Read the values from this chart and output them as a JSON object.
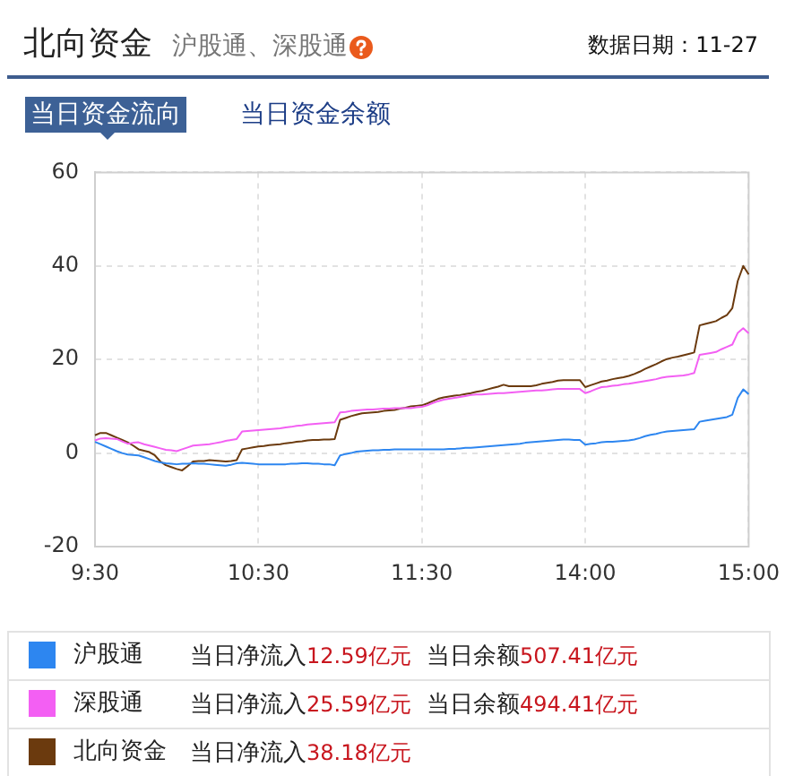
{
  "chart_data": {
    "type": "line",
    "title": "北向资金",
    "subtitle": "沪股通、深股通",
    "annotations": [
      "数据日期：11-27",
      "当日资金流向",
      "当日资金余额",
      "当日净流入12.59亿元",
      "当日余额507.41亿元",
      "当日净流入25.59亿元",
      "当日余额494.41亿元",
      "当日净流入38.18亿元"
    ],
    "categories": [
      "9:30",
      null,
      null,
      null,
      null,
      null,
      null,
      null,
      null,
      null,
      null,
      null,
      null,
      null,
      null,
      null,
      null,
      null,
      null,
      null,
      null,
      null,
      null,
      null,
      null,
      null,
      null,
      null,
      null,
      null,
      "10:30",
      null,
      null,
      null,
      null,
      null,
      null,
      null,
      null,
      null,
      null,
      null,
      null,
      null,
      null,
      null,
      null,
      null,
      null,
      null,
      null,
      null,
      null,
      null,
      null,
      null,
      null,
      null,
      null,
      null,
      "11:30",
      null,
      null,
      null,
      null,
      null,
      null,
      null,
      null,
      null,
      null,
      null,
      null,
      null,
      null,
      null,
      null,
      null,
      null,
      null,
      null,
      null,
      null,
      null,
      null,
      null,
      null,
      null,
      null,
      null,
      "14:00",
      null,
      null,
      null,
      null,
      null,
      null,
      null,
      null,
      null,
      null,
      null,
      null,
      null,
      null,
      null,
      null,
      null,
      null,
      null,
      null,
      null,
      null,
      null,
      null,
      null,
      null,
      null,
      null,
      null,
      "15:00"
    ],
    "ylim": [
      -20,
      60
    ],
    "yticks": [
      -20,
      0,
      20,
      40,
      60
    ],
    "grid": true,
    "legend": "bottom",
    "series": [
      {
        "name": "沪股通",
        "color": "#2d86f0",
        "values": [
          2.4,
          1.9,
          1.4,
          0.9,
          0.4,
          0.0,
          -0.3,
          -0.4,
          -0.5,
          -0.9,
          -1.3,
          -1.7,
          -2.0,
          -2.2,
          -2.3,
          -2.4,
          -2.3,
          -2.3,
          -2.2,
          -2.3,
          -2.3,
          -2.4,
          -2.5,
          -2.6,
          -2.7,
          -2.5,
          -2.2,
          -2.1,
          -2.2,
          -2.3,
          -2.4,
          -2.4,
          -2.4,
          -2.4,
          -2.4,
          -2.4,
          -2.3,
          -2.3,
          -2.2,
          -2.2,
          -2.3,
          -2.3,
          -2.4,
          -2.4,
          -2.6,
          -0.5,
          -0.2,
          0.0,
          0.3,
          0.4,
          0.5,
          0.6,
          0.6,
          0.7,
          0.7,
          0.8,
          0.8,
          0.8,
          0.8,
          0.8,
          0.8,
          0.8,
          0.8,
          0.8,
          0.8,
          0.9,
          0.9,
          1.0,
          1.1,
          1.1,
          1.2,
          1.3,
          1.4,
          1.5,
          1.6,
          1.7,
          1.8,
          1.9,
          2.0,
          2.2,
          2.3,
          2.4,
          2.5,
          2.6,
          2.7,
          2.8,
          2.9,
          2.9,
          2.8,
          2.8,
          1.8,
          2.0,
          2.1,
          2.3,
          2.4,
          2.4,
          2.5,
          2.6,
          2.7,
          2.9,
          3.2,
          3.6,
          3.9,
          4.1,
          4.4,
          4.6,
          4.7,
          4.8,
          4.9,
          5.0,
          5.1,
          6.7,
          6.9,
          7.1,
          7.3,
          7.5,
          7.7,
          8.2,
          11.8,
          13.6,
          12.59
        ]
      },
      {
        "name": "深股通",
        "color": "#f35ff3",
        "values": [
          2.7,
          3.1,
          3.2,
          3.1,
          3.0,
          2.5,
          2.0,
          2.2,
          2.3,
          1.9,
          1.6,
          1.3,
          1.0,
          0.7,
          0.6,
          0.4,
          0.8,
          1.2,
          1.6,
          1.7,
          1.8,
          1.9,
          2.1,
          2.3,
          2.6,
          2.8,
          3.0,
          4.6,
          4.7,
          4.8,
          4.9,
          5.0,
          5.1,
          5.2,
          5.3,
          5.5,
          5.6,
          5.8,
          5.9,
          6.1,
          6.2,
          6.3,
          6.4,
          6.5,
          6.6,
          8.7,
          8.8,
          9.0,
          9.1,
          9.2,
          9.3,
          9.3,
          9.4,
          9.5,
          9.5,
          9.6,
          9.6,
          9.6,
          9.6,
          9.8,
          9.9,
          10.2,
          10.7,
          11.1,
          11.4,
          11.6,
          11.8,
          12.0,
          12.2,
          12.4,
          12.5,
          12.5,
          12.6,
          12.7,
          12.8,
          12.8,
          12.9,
          13.0,
          13.1,
          13.2,
          13.3,
          13.4,
          13.4,
          13.5,
          13.6,
          13.7,
          13.7,
          13.7,
          13.7,
          13.7,
          12.8,
          13.2,
          13.7,
          14.1,
          14.2,
          14.4,
          14.5,
          14.7,
          14.8,
          15.0,
          15.2,
          15.4,
          15.6,
          15.8,
          16.1,
          16.3,
          16.4,
          16.5,
          16.6,
          16.8,
          17.1,
          21.0,
          21.2,
          21.4,
          21.6,
          22.2,
          22.7,
          23.2,
          25.7,
          26.7,
          25.59
        ]
      },
      {
        "name": "北向资金",
        "color": "#6b3a0e",
        "values": [
          3.8,
          4.3,
          4.3,
          3.8,
          3.3,
          2.8,
          2.3,
          1.6,
          0.8,
          0.5,
          0.2,
          -0.5,
          -1.8,
          -2.6,
          -3.0,
          -3.4,
          -3.7,
          -2.8,
          -1.8,
          -1.7,
          -1.7,
          -1.5,
          -1.6,
          -1.7,
          -1.8,
          -1.7,
          -1.5,
          0.8,
          1.0,
          1.2,
          1.4,
          1.5,
          1.7,
          1.8,
          1.9,
          2.1,
          2.2,
          2.4,
          2.5,
          2.7,
          2.8,
          2.8,
          2.9,
          2.9,
          3.0,
          7.1,
          7.5,
          7.9,
          8.2,
          8.5,
          8.6,
          8.7,
          8.8,
          9.0,
          9.1,
          9.2,
          9.5,
          9.7,
          10.0,
          10.1,
          10.2,
          10.6,
          11.1,
          11.6,
          11.9,
          12.1,
          12.3,
          12.4,
          12.6,
          12.8,
          13.1,
          13.3,
          13.6,
          13.9,
          14.2,
          14.6,
          14.3,
          14.3,
          14.3,
          14.3,
          14.3,
          14.5,
          14.8,
          15.0,
          15.2,
          15.5,
          15.6,
          15.6,
          15.6,
          15.6,
          14.1,
          14.5,
          14.9,
          15.3,
          15.5,
          15.8,
          16.0,
          16.2,
          16.5,
          16.9,
          17.4,
          18.0,
          18.5,
          19.0,
          19.6,
          20.1,
          20.4,
          20.6,
          20.9,
          21.2,
          21.5,
          27.3,
          27.6,
          27.9,
          28.2,
          28.9,
          29.5,
          31.0,
          36.8,
          40.0,
          38.18
        ]
      }
    ]
  }
}
